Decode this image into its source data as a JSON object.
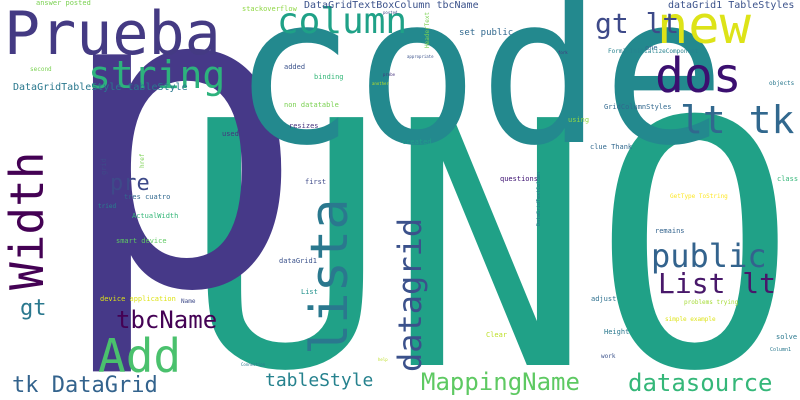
{
  "words": [
    {
      "text": "UNO",
      "color": "#20a187"
    },
    {
      "text": "p",
      "color": "#463988"
    },
    {
      "text": "code",
      "color": "#23898e"
    },
    {
      "text": "Prueba",
      "color": "#443a83"
    },
    {
      "text": "new",
      "color": "#dde318"
    },
    {
      "text": "dos",
      "color": "#3b0f70"
    },
    {
      "text": "Width",
      "color": "#440154"
    },
    {
      "text": "lista",
      "color": "#2a788e"
    },
    {
      "text": "Add",
      "color": "#4ac16d"
    },
    {
      "text": "string",
      "color": "#2db27d"
    },
    {
      "text": "column",
      "color": "#1fa187"
    },
    {
      "text": "lt tk",
      "color": "#31688e"
    },
    {
      "text": "datagrid",
      "color": "#3b518b"
    },
    {
      "text": "public",
      "color": "#33638d"
    },
    {
      "text": "List lt",
      "color": "#48186a"
    },
    {
      "text": "gt lt",
      "color": "#3e4a89"
    },
    {
      "text": "tbcName",
      "color": "#440154"
    },
    {
      "text": "pre",
      "color": "#3e4a89"
    },
    {
      "text": "MappingName",
      "color": "#5ec962"
    },
    {
      "text": "datasource",
      "color": "#35b779"
    },
    {
      "text": "tk DataGrid",
      "color": "#33638d"
    },
    {
      "text": "tableStyle",
      "color": "#26828e"
    },
    {
      "text": "gt",
      "color": "#2a788e"
    },
    {
      "text": "DataGridTableStyle tableStyle",
      "color": "#2a788e"
    },
    {
      "text": "DataGridTextBoxColumn tbcName",
      "color": "#3b528b"
    },
    {
      "text": "dataGrid1 TableStyles",
      "color": "#3b528b"
    },
    {
      "text": "answer posted",
      "color": "#7ad151"
    },
    {
      "text": "stackoverflow",
      "color": "#8fd744"
    },
    {
      "text": "set public",
      "color": "#31688e"
    },
    {
      "text": "one",
      "color": "#31688e"
    },
    {
      "text": "added",
      "color": "#3b528b"
    },
    {
      "text": "binding",
      "color": "#35b779"
    },
    {
      "text": "non datatable",
      "color": "#7ad151"
    },
    {
      "text": "resizes",
      "color": "#46337e"
    },
    {
      "text": "created",
      "color": "#1f9e89"
    },
    {
      "text": "clue Thank",
      "color": "#31688e"
    },
    {
      "text": "GridColumnStyles",
      "color": "#31688e"
    },
    {
      "text": "using",
      "color": "#90d743"
    },
    {
      "text": "first",
      "color": "#3e4a89"
    },
    {
      "text": "questions",
      "color": "#3b0f70"
    },
    {
      "text": "grid",
      "color": "#3e4a89"
    },
    {
      "text": "tres cuatro",
      "color": "#31688e"
    },
    {
      "text": "ActualWidth",
      "color": "#35b779"
    },
    {
      "text": "smart device",
      "color": "#5ec962"
    },
    {
      "text": "tried",
      "color": "#26828e"
    },
    {
      "text": "href",
      "color": "#7ad151"
    },
    {
      "text": "dataGrid1",
      "color": "#3b528b"
    },
    {
      "text": "List",
      "color": "#21918c"
    },
    {
      "text": "device application",
      "color": "#dde318"
    },
    {
      "text": "Name",
      "color": "#3e4a89"
    },
    {
      "text": "second",
      "color": "#7ad151"
    },
    {
      "text": "used",
      "color": "#46337e"
    },
    {
      "text": "Clear",
      "color": "#bddf26"
    },
    {
      "text": "Height",
      "color": "#2a788e"
    },
    {
      "text": "work",
      "color": "#3b528b"
    },
    {
      "text": "remains",
      "color": "#33638d"
    },
    {
      "text": "adjust",
      "color": "#2d708e"
    },
    {
      "text": "problems trying",
      "color": "#a5db36"
    },
    {
      "text": "simple example",
      "color": "#dde318"
    },
    {
      "text": "solve",
      "color": "#2a788e"
    },
    {
      "text": "class",
      "color": "#35b779"
    },
    {
      "text": "GetType ToString",
      "color": "#fde725"
    },
    {
      "text": "Form1 InitializeComponent",
      "color": "#26828e"
    },
    {
      "text": "objects",
      "color": "#2a788e"
    },
    {
      "text": "HeaderText",
      "color": "#7ad151"
    },
    {
      "text": "DataGridTextColumn",
      "color": "#2a788e"
    },
    {
      "text": "Column1",
      "color": "#2a788e"
    },
    {
      "text": "appropriate",
      "color": "#3b528b"
    },
    {
      "text": "probe",
      "color": "#46337e"
    },
    {
      "text": "another",
      "color": "#bddf26"
    },
    {
      "text": "posted",
      "color": "#3e4a89"
    },
    {
      "text": "fork",
      "color": "#46337e"
    },
    {
      "text": "help",
      "color": "#bddf26"
    },
    {
      "text": "Connection",
      "color": "#2a788e"
    }
  ]
}
